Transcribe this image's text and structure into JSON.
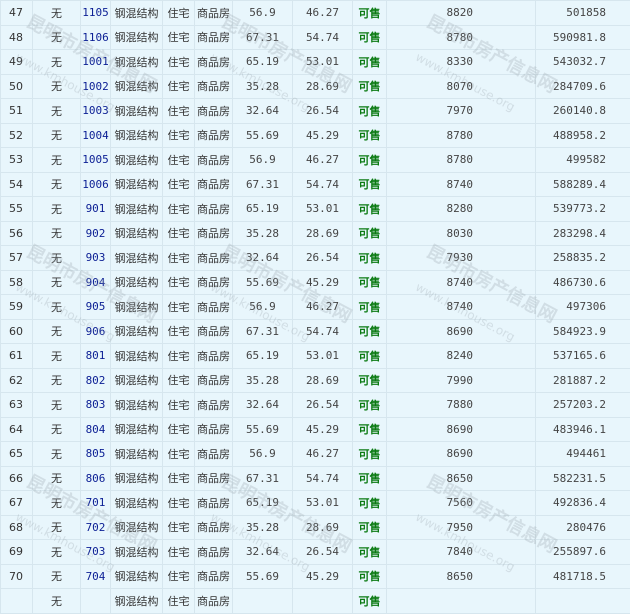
{
  "watermark": {
    "cn": "昆明市房产信息网",
    "en": "www.kmhouse.org"
  },
  "colors": {
    "background": "#e8f6fc",
    "room_link": "#0b1e94",
    "status_available": "#0a7a12"
  },
  "rows": [
    [
      "47",
      "无",
      "1105",
      "钢混结构",
      "住宅",
      "商品房",
      "56.9",
      "46.27",
      "可售",
      "8820",
      "501858"
    ],
    [
      "48",
      "无",
      "1106",
      "钢混结构",
      "住宅",
      "商品房",
      "67.31",
      "54.74",
      "可售",
      "8780",
      "590981.8"
    ],
    [
      "49",
      "无",
      "1001",
      "钢混结构",
      "住宅",
      "商品房",
      "65.19",
      "53.01",
      "可售",
      "8330",
      "543032.7"
    ],
    [
      "50",
      "无",
      "1002",
      "钢混结构",
      "住宅",
      "商品房",
      "35.28",
      "28.69",
      "可售",
      "8070",
      "284709.6"
    ],
    [
      "51",
      "无",
      "1003",
      "钢混结构",
      "住宅",
      "商品房",
      "32.64",
      "26.54",
      "可售",
      "7970",
      "260140.8"
    ],
    [
      "52",
      "无",
      "1004",
      "钢混结构",
      "住宅",
      "商品房",
      "55.69",
      "45.29",
      "可售",
      "8780",
      "488958.2"
    ],
    [
      "53",
      "无",
      "1005",
      "钢混结构",
      "住宅",
      "商品房",
      "56.9",
      "46.27",
      "可售",
      "8780",
      "499582"
    ],
    [
      "54",
      "无",
      "1006",
      "钢混结构",
      "住宅",
      "商品房",
      "67.31",
      "54.74",
      "可售",
      "8740",
      "588289.4"
    ],
    [
      "55",
      "无",
      "901",
      "钢混结构",
      "住宅",
      "商品房",
      "65.19",
      "53.01",
      "可售",
      "8280",
      "539773.2"
    ],
    [
      "56",
      "无",
      "902",
      "钢混结构",
      "住宅",
      "商品房",
      "35.28",
      "28.69",
      "可售",
      "8030",
      "283298.4"
    ],
    [
      "57",
      "无",
      "903",
      "钢混结构",
      "住宅",
      "商品房",
      "32.64",
      "26.54",
      "可售",
      "7930",
      "258835.2"
    ],
    [
      "58",
      "无",
      "904",
      "钢混结构",
      "住宅",
      "商品房",
      "55.69",
      "45.29",
      "可售",
      "8740",
      "486730.6"
    ],
    [
      "59",
      "无",
      "905",
      "钢混结构",
      "住宅",
      "商品房",
      "56.9",
      "46.27",
      "可售",
      "8740",
      "497306"
    ],
    [
      "60",
      "无",
      "906",
      "钢混结构",
      "住宅",
      "商品房",
      "67.31",
      "54.74",
      "可售",
      "8690",
      "584923.9"
    ],
    [
      "61",
      "无",
      "801",
      "钢混结构",
      "住宅",
      "商品房",
      "65.19",
      "53.01",
      "可售",
      "8240",
      "537165.6"
    ],
    [
      "62",
      "无",
      "802",
      "钢混结构",
      "住宅",
      "商品房",
      "35.28",
      "28.69",
      "可售",
      "7990",
      "281887.2"
    ],
    [
      "63",
      "无",
      "803",
      "钢混结构",
      "住宅",
      "商品房",
      "32.64",
      "26.54",
      "可售",
      "7880",
      "257203.2"
    ],
    [
      "64",
      "无",
      "804",
      "钢混结构",
      "住宅",
      "商品房",
      "55.69",
      "45.29",
      "可售",
      "8690",
      "483946.1"
    ],
    [
      "65",
      "无",
      "805",
      "钢混结构",
      "住宅",
      "商品房",
      "56.9",
      "46.27",
      "可售",
      "8690",
      "494461"
    ],
    [
      "66",
      "无",
      "806",
      "钢混结构",
      "住宅",
      "商品房",
      "67.31",
      "54.74",
      "可售",
      "8650",
      "582231.5"
    ],
    [
      "67",
      "无",
      "701",
      "钢混结构",
      "住宅",
      "商品房",
      "65.19",
      "53.01",
      "可售",
      "7560",
      "492836.4"
    ],
    [
      "68",
      "无",
      "702",
      "钢混结构",
      "住宅",
      "商品房",
      "35.28",
      "28.69",
      "可售",
      "7950",
      "280476"
    ],
    [
      "69",
      "无",
      "703",
      "钢混结构",
      "住宅",
      "商品房",
      "32.64",
      "26.54",
      "可售",
      "7840",
      "255897.6"
    ],
    [
      "70",
      "无",
      "704",
      "钢混结构",
      "住宅",
      "商品房",
      "55.69",
      "45.29",
      "可售",
      "8650",
      "481718.5"
    ],
    [
      "",
      "无",
      "",
      "钢混结构",
      "住宅",
      "商品房",
      "",
      "",
      "可售",
      "",
      ""
    ]
  ]
}
